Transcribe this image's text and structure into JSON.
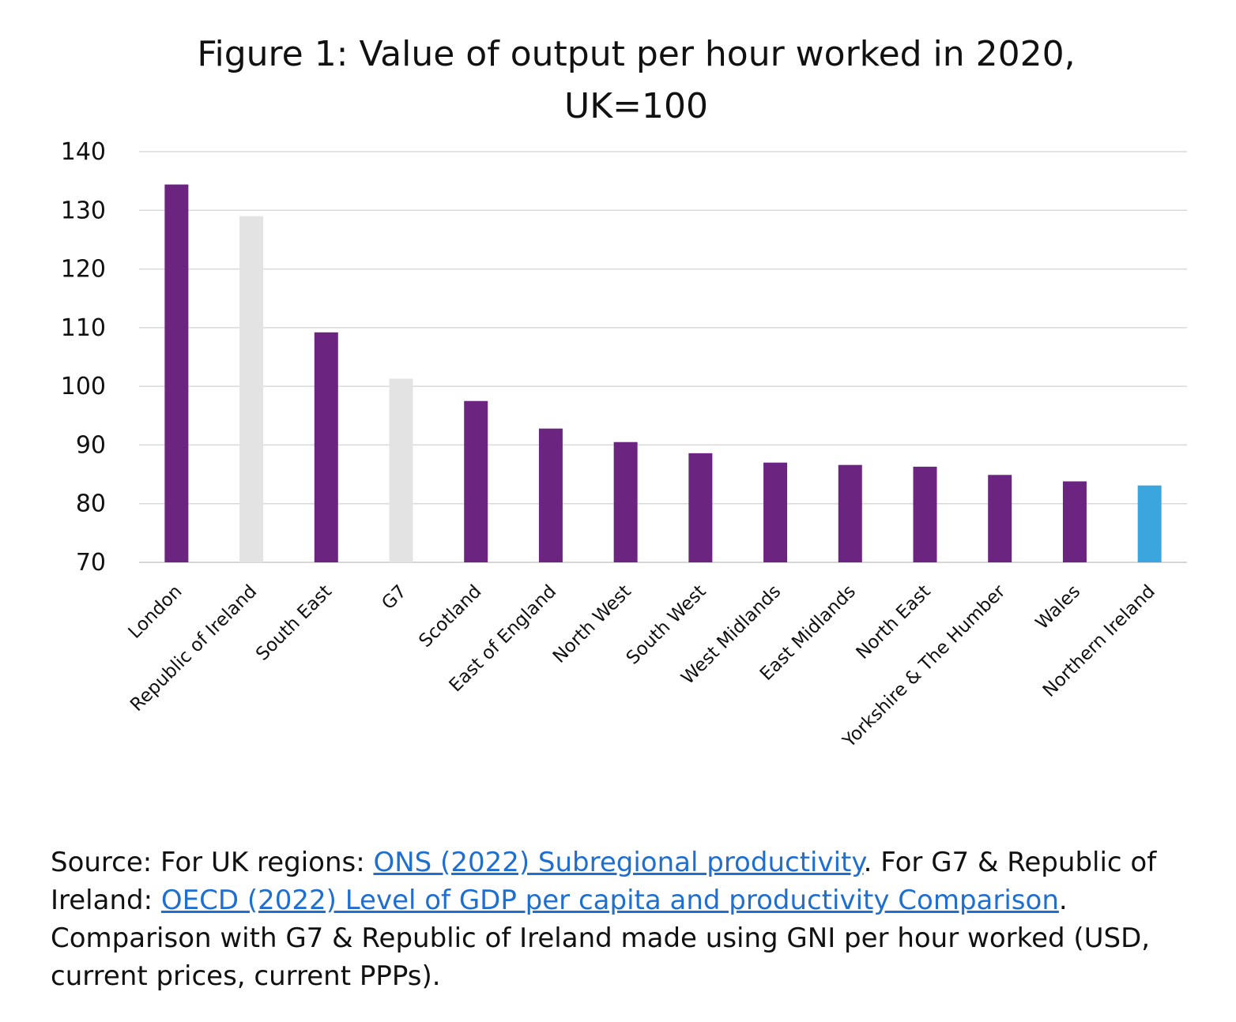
{
  "chart_data": {
    "type": "bar",
    "title_lines": [
      "Figure 1: Value of output per hour worked in 2020,",
      "UK=100"
    ],
    "categories": [
      "London",
      "Republic of Ireland",
      "South East",
      "G7",
      "Scotland",
      "East of England",
      "North West",
      "South West",
      "West Midlands",
      "East Midlands",
      "North East",
      "Yorkshire & The Humber",
      "Wales",
      "Northern Ireland"
    ],
    "values": [
      134.4,
      129,
      109.2,
      101.3,
      97.5,
      92.8,
      90.5,
      88.6,
      87,
      86.6,
      86.3,
      84.9,
      83.8,
      83.1
    ],
    "colors": [
      "#6b2480",
      "#e3e3e3",
      "#6b2480",
      "#e3e3e3",
      "#6b2480",
      "#6b2480",
      "#6b2480",
      "#6b2480",
      "#6b2480",
      "#6b2480",
      "#6b2480",
      "#6b2480",
      "#6b2480",
      "#3ba6dd"
    ],
    "ylim": [
      70,
      140
    ],
    "yticks": [
      70,
      80,
      90,
      100,
      110,
      120,
      130,
      140
    ],
    "grid": true,
    "xlabel": "",
    "ylabel": ""
  },
  "source": {
    "prefix": "Source: For UK regions: ",
    "link1": "ONS (2022) Subregional productivity",
    "middle": ". For G7 & Republic of Ireland: ",
    "link2": "OECD (2022) Level of GDP per capita and productivity Comparison",
    "suffix": ". Comparison with G7 & Republic of Ireland made using GNI per hour worked (USD, current prices, current PPPs)."
  }
}
